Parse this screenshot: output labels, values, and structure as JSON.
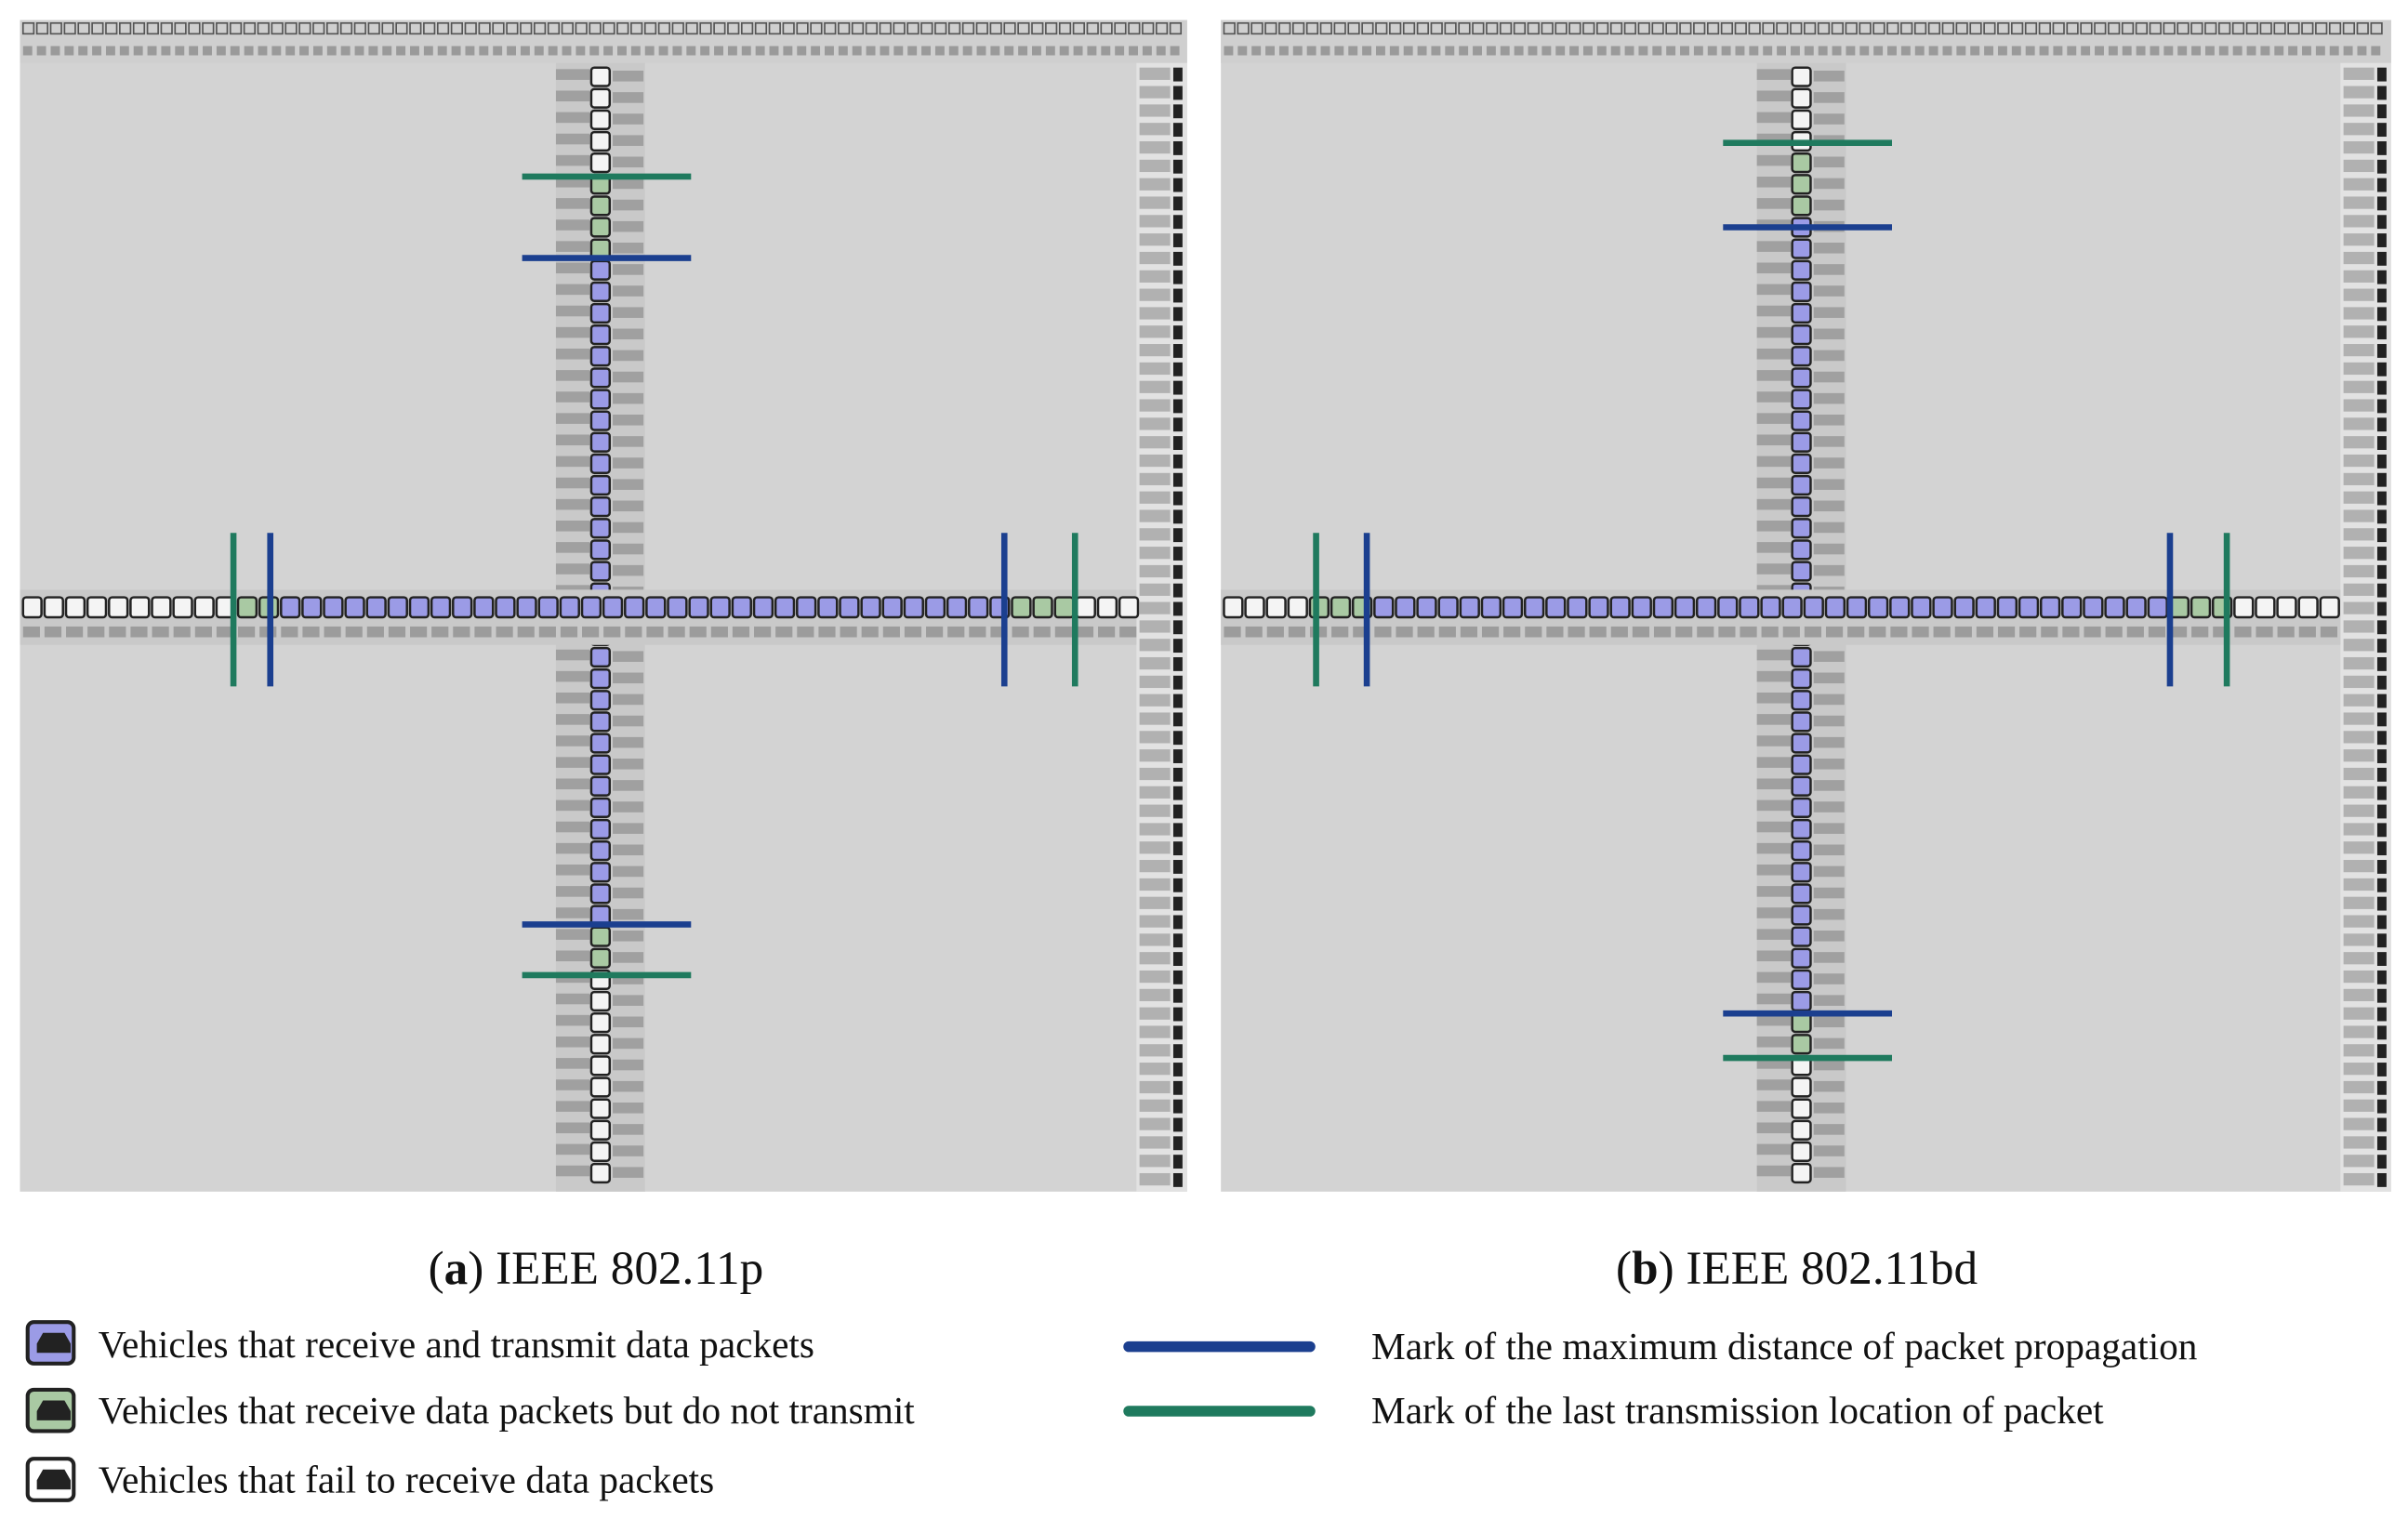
{
  "panels": [
    {
      "caption": [
        "(",
        "a",
        ") IEEE 802.11p"
      ]
    },
    {
      "caption": [
        "(",
        "b",
        ") IEEE 802.11bd"
      ]
    }
  ],
  "legend": {
    "vehicles": [
      "Vehicles that receive and transmit data packets",
      "Vehicles that receive data packets but do not transmit",
      "Vehicles that fail to receive data packets"
    ],
    "marks": [
      "Mark of the maximum distance of packet propagation",
      "Mark of the last transmission location of packet"
    ]
  }
}
